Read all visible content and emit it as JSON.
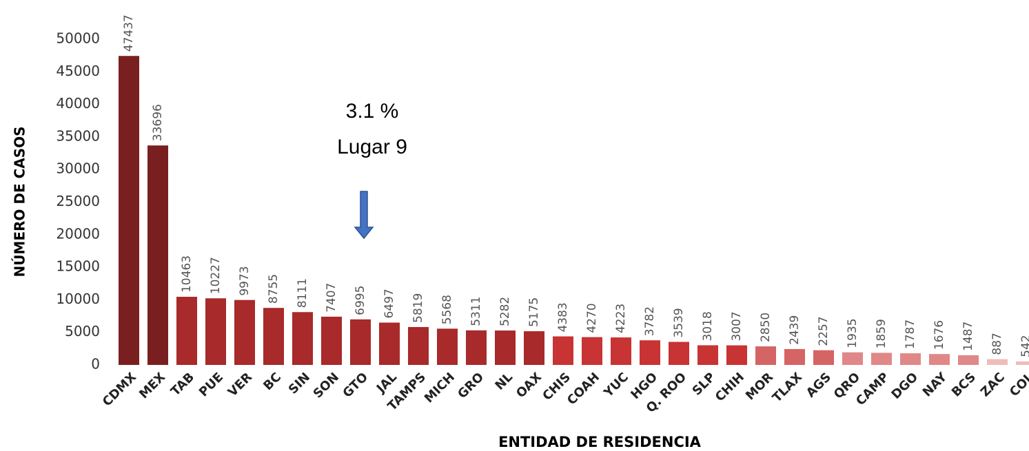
{
  "chart_data": {
    "type": "bar",
    "x_label": "ENTIDAD DE RESIDENCIA",
    "y_label": "NÚMERO DE CASOS",
    "annotations": [
      "3.1 %",
      "Lugar 9"
    ],
    "categories": [
      "CDMX",
      "MEX",
      "TAB",
      "PUE",
      "VER",
      "BC",
      "SIN",
      "SON",
      "GTO",
      "JAL",
      "TAMPS",
      "MICH",
      "GRO",
      "NL",
      "OAX",
      "CHIS",
      "COAH",
      "YUC",
      "HGO",
      "Q. ROO",
      "SLP",
      "CHIH",
      "MOR",
      "TLAX",
      "AGS",
      "QRO",
      "CAMP",
      "DGO",
      "NAY",
      "BCS",
      "ZAC",
      "COL"
    ],
    "values": [
      47437,
      33696,
      10463,
      10227,
      9973,
      8755,
      8111,
      7407,
      6995,
      6497,
      5819,
      5568,
      5311,
      5282,
      5175,
      4383,
      4270,
      4223,
      3782,
      3539,
      3018,
      3007,
      2850,
      2439,
      2257,
      1935,
      1859,
      1787,
      1676,
      1487,
      887,
      542
    ],
    "colors": [
      "#7a1f1f",
      "#7a1f1f",
      "#a82a2a",
      "#a82a2a",
      "#a82a2a",
      "#a82a2a",
      "#a82a2a",
      "#a82a2a",
      "#a82a2a",
      "#a82a2a",
      "#a82a2a",
      "#a82a2a",
      "#a82a2a",
      "#a82a2a",
      "#a82a2a",
      "#c83333",
      "#c83333",
      "#c83333",
      "#c83333",
      "#c83333",
      "#c83333",
      "#c83333",
      "#d56464",
      "#d56464",
      "#d56464",
      "#e08888",
      "#e08888",
      "#e08888",
      "#e08888",
      "#e08888",
      "#efbcbc",
      "#efbcbc"
    ],
    "ylim": [
      0,
      50000
    ],
    "yticks": [
      0,
      5000,
      10000,
      15000,
      20000,
      25000,
      30000,
      35000,
      40000,
      45000,
      50000
    ],
    "grid": false
  }
}
